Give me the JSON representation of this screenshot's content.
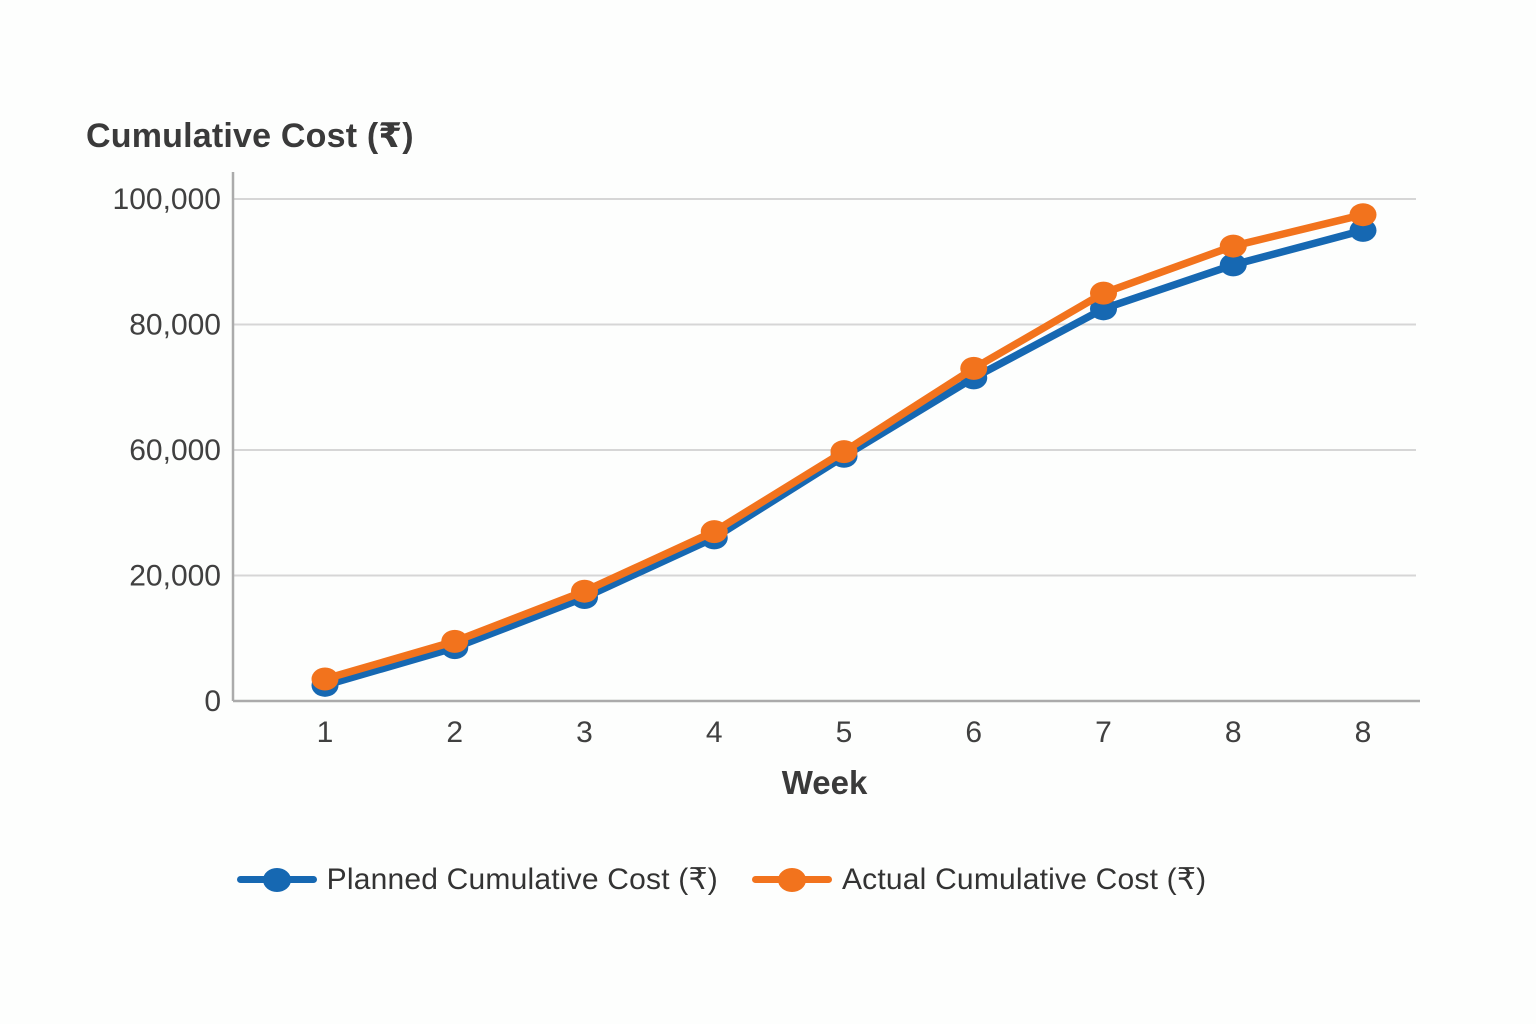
{
  "chart_data": {
    "type": "line",
    "title": "Cumulative Cost (₹)",
    "xlabel": "Week",
    "ylabel": "Cumulative Cost (₹)",
    "categories": [
      "1",
      "2",
      "3",
      "4",
      "5",
      "6",
      "7",
      "8",
      "8"
    ],
    "y_ticks": [
      {
        "label": "100,000",
        "value": 100000
      },
      {
        "label": "80,000",
        "value": 80000
      },
      {
        "label": "60,000",
        "value": 60000
      },
      {
        "label": "20,000",
        "value": 20000
      },
      {
        "label": "0",
        "value": 0
      }
    ],
    "ylim": [
      0,
      100000
    ],
    "grid": true,
    "legend_position": "bottom",
    "series": [
      {
        "name": "Planned Cumulative Cost (₹)",
        "color": "#1668B2",
        "values": [
          2500,
          8500,
          16500,
          32000,
          58000,
          71500,
          82500,
          89500,
          95000
        ]
      },
      {
        "name": "Actual Cumulative Cost (₹)",
        "color": "#F2731D",
        "values": [
          3500,
          9500,
          17500,
          34000,
          59500,
          73000,
          85000,
          92500,
          97500
        ]
      }
    ]
  },
  "colors": {
    "grid": "#d6d6d6",
    "axis": "#ababab",
    "tick_text": "#404040",
    "background": "#fdfefd"
  }
}
